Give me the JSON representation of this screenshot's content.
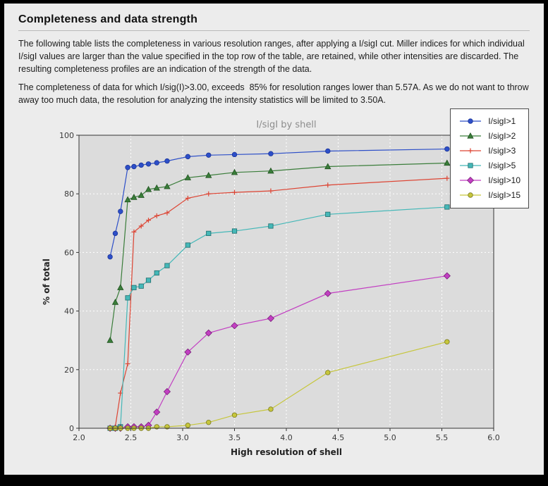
{
  "page": {
    "title": "Completeness and data strength",
    "paragraph1": "The following table lists the completeness in various resolution ranges, after applying a I/sigI cut. Miller indices for which individual I/sigI values are larger than the value specified in the top row of the table, are retained, while other intensities are discarded. The resulting completeness profiles are an indication of the strength of the data.",
    "paragraph2": "The completeness of data for which I/sig(I)>3.00, exceeds  85% for resolution ranges lower than 5.57A. As we do not want to throw away too much data, the resolution for analyzing the intensity statistics will be limited to 3.50A."
  },
  "chart_data": {
    "type": "line",
    "title": "I/sigI by shell",
    "xlabel": "High resolution of shell",
    "ylabel": "% of total",
    "xlim": [
      2.0,
      6.0
    ],
    "ylim": [
      0,
      100
    ],
    "xticks": [
      "2.0",
      "2.5",
      "3.0",
      "3.5",
      "4.0",
      "4.5",
      "5.0",
      "5.5",
      "6.0"
    ],
    "yticks": [
      "0",
      "20",
      "40",
      "60",
      "80",
      "100"
    ],
    "grid": true,
    "grid_color": "#ffffff",
    "plot_bg": "#dcdcdc",
    "legend_position": "upper right",
    "x": [
      2.3,
      2.35,
      2.4,
      2.47,
      2.53,
      2.6,
      2.67,
      2.75,
      2.85,
      3.05,
      3.25,
      3.5,
      3.85,
      4.4,
      5.55
    ],
    "series": [
      {
        "name": "I/sigI>1",
        "color": "#2d4fc8",
        "edge": "#1c3599",
        "marker": "circle",
        "values": [
          58.5,
          66.5,
          74,
          89,
          89.3,
          89.8,
          90.2,
          90.6,
          91.2,
          92.7,
          93.2,
          93.4,
          93.7,
          94.6,
          95.3
        ]
      },
      {
        "name": "I/sigI>2",
        "color": "#3a7d3a",
        "edge": "#1f521f",
        "marker": "triangle",
        "values": [
          30,
          43,
          48,
          78,
          78.8,
          79.5,
          81.5,
          82,
          82.5,
          85.5,
          86.3,
          87.3,
          87.8,
          89.3,
          90.5
        ]
      },
      {
        "name": "I/sigI>3",
        "color": "#dd4433",
        "edge": "#dd4433",
        "marker": "plus",
        "values": [
          0,
          0.5,
          12,
          22,
          67,
          69,
          71,
          72.5,
          73.5,
          78.5,
          80,
          80.5,
          81,
          83,
          85.3
        ]
      },
      {
        "name": "I/sigI>5",
        "color": "#45b8b8",
        "edge": "#1f6b6b",
        "marker": "square",
        "values": [
          0,
          0,
          0.5,
          44.5,
          48,
          48.5,
          50.5,
          53,
          55.5,
          62.5,
          66.5,
          67.3,
          69,
          73,
          75.5
        ]
      },
      {
        "name": "I/sigI>10",
        "color": "#c23fc2",
        "edge": "#7a1f7a",
        "marker": "diamond",
        "values": [
          0,
          0,
          0,
          0.5,
          0.5,
          0.5,
          1,
          5.5,
          12.5,
          26,
          32.5,
          35,
          37.5,
          46,
          52
        ]
      },
      {
        "name": "I/sigI>15",
        "color": "#c6c63c",
        "edge": "#7a7a1f",
        "marker": "circle",
        "values": [
          0,
          0,
          0,
          0,
          0,
          0,
          0,
          0.5,
          0.5,
          1,
          2,
          4.5,
          6.5,
          19,
          29.5
        ]
      }
    ]
  }
}
